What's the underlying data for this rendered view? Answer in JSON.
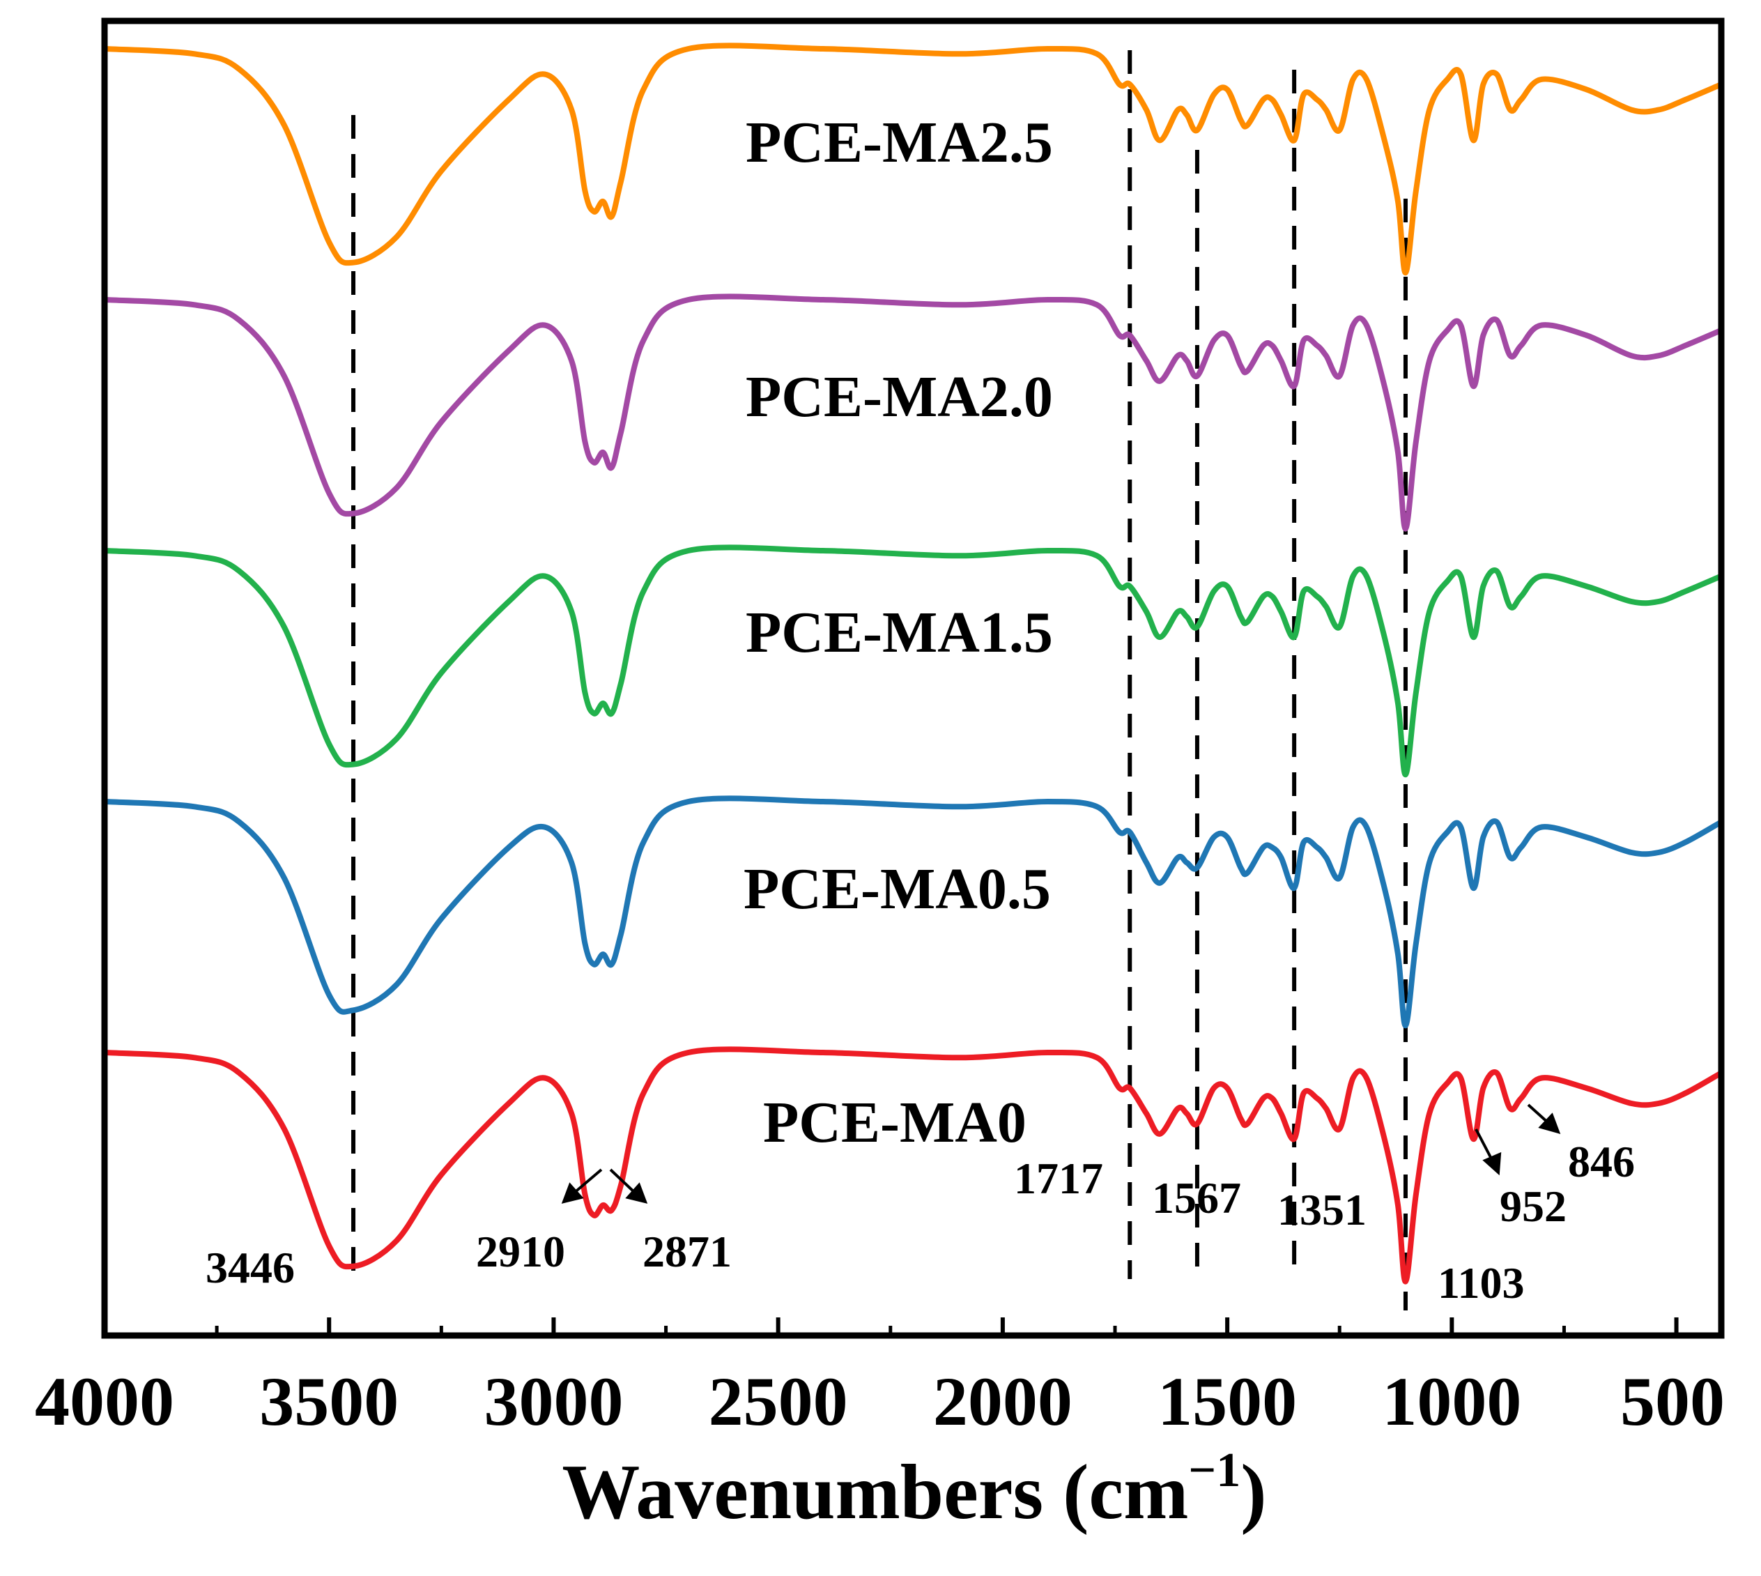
{
  "chart_data": {
    "type": "line",
    "title": "",
    "xlabel": "Wavenumbers (cm",
    "xlabel_sup": "−1",
    "xlabel_close": ")",
    "ylabel": "",
    "xlim": [
      4000,
      400
    ],
    "x_reversed": true,
    "x_ticks": [
      "4000",
      "3500",
      "3000",
      "2500",
      "2000",
      "1500",
      "1000",
      "500"
    ],
    "x_tick_values": [
      4000,
      3500,
      3000,
      2500,
      2000,
      1500,
      1000,
      500
    ],
    "grid": false,
    "legend": "inline labels",
    "series": [
      {
        "name": "PCE-MA2.5",
        "color": "#ff8c00",
        "offset": 4,
        "points": [
          [
            4000,
            1.0
          ],
          [
            3800,
            0.99
          ],
          [
            3700,
            0.96
          ],
          [
            3600,
            0.85
          ],
          [
            3500,
            0.62
          ],
          [
            3446,
            0.58
          ],
          [
            3350,
            0.63
          ],
          [
            3250,
            0.76
          ],
          [
            3100,
            0.9
          ],
          [
            3020,
            0.95
          ],
          [
            2960,
            0.88
          ],
          [
            2930,
            0.72
          ],
          [
            2910,
            0.68
          ],
          [
            2890,
            0.7
          ],
          [
            2871,
            0.67
          ],
          [
            2850,
            0.74
          ],
          [
            2800,
            0.92
          ],
          [
            2700,
            1.0
          ],
          [
            2400,
            1.0
          ],
          [
            2100,
            0.99
          ],
          [
            1900,
            1.0
          ],
          [
            1790,
            0.99
          ],
          [
            1740,
            0.93
          ],
          [
            1717,
            0.93
          ],
          [
            1680,
            0.88
          ],
          [
            1650,
            0.82
          ],
          [
            1610,
            0.88
          ],
          [
            1590,
            0.87
          ],
          [
            1567,
            0.84
          ],
          [
            1530,
            0.91
          ],
          [
            1500,
            0.92
          ],
          [
            1470,
            0.86
          ],
          [
            1455,
            0.85
          ],
          [
            1420,
            0.9
          ],
          [
            1400,
            0.9
          ],
          [
            1380,
            0.87
          ],
          [
            1351,
            0.82
          ],
          [
            1330,
            0.91
          ],
          [
            1300,
            0.9
          ],
          [
            1280,
            0.88
          ],
          [
            1250,
            0.84
          ],
          [
            1220,
            0.94
          ],
          [
            1190,
            0.94
          ],
          [
            1150,
            0.82
          ],
          [
            1120,
            0.7
          ],
          [
            1103,
            0.56
          ],
          [
            1080,
            0.72
          ],
          [
            1050,
            0.88
          ],
          [
            1010,
            0.94
          ],
          [
            980,
            0.95
          ],
          [
            952,
            0.82
          ],
          [
            930,
            0.93
          ],
          [
            900,
            0.95
          ],
          [
            870,
            0.88
          ],
          [
            846,
            0.9
          ],
          [
            800,
            0.94
          ],
          [
            700,
            0.92
          ],
          [
            600,
            0.88
          ],
          [
            540,
            0.88
          ],
          [
            480,
            0.9
          ],
          [
            400,
            0.93
          ]
        ]
      },
      {
        "name": "PCE-MA2.0",
        "color": "#a349a4",
        "offset": 3,
        "points": [
          [
            4000,
            1.0
          ],
          [
            3800,
            0.99
          ],
          [
            3700,
            0.96
          ],
          [
            3600,
            0.85
          ],
          [
            3500,
            0.62
          ],
          [
            3446,
            0.58
          ],
          [
            3350,
            0.63
          ],
          [
            3250,
            0.76
          ],
          [
            3100,
            0.9
          ],
          [
            3020,
            0.95
          ],
          [
            2960,
            0.88
          ],
          [
            2930,
            0.72
          ],
          [
            2910,
            0.68
          ],
          [
            2890,
            0.7
          ],
          [
            2871,
            0.67
          ],
          [
            2850,
            0.74
          ],
          [
            2800,
            0.92
          ],
          [
            2700,
            1.0
          ],
          [
            2400,
            1.0
          ],
          [
            2100,
            0.99
          ],
          [
            1900,
            1.0
          ],
          [
            1790,
            0.99
          ],
          [
            1740,
            0.93
          ],
          [
            1717,
            0.93
          ],
          [
            1680,
            0.88
          ],
          [
            1650,
            0.84
          ],
          [
            1610,
            0.89
          ],
          [
            1590,
            0.88
          ],
          [
            1567,
            0.85
          ],
          [
            1530,
            0.92
          ],
          [
            1500,
            0.93
          ],
          [
            1470,
            0.87
          ],
          [
            1455,
            0.86
          ],
          [
            1420,
            0.91
          ],
          [
            1400,
            0.91
          ],
          [
            1380,
            0.88
          ],
          [
            1351,
            0.83
          ],
          [
            1330,
            0.92
          ],
          [
            1300,
            0.91
          ],
          [
            1280,
            0.89
          ],
          [
            1250,
            0.85
          ],
          [
            1220,
            0.95
          ],
          [
            1190,
            0.95
          ],
          [
            1150,
            0.83
          ],
          [
            1120,
            0.7
          ],
          [
            1103,
            0.55
          ],
          [
            1080,
            0.72
          ],
          [
            1050,
            0.88
          ],
          [
            1010,
            0.94
          ],
          [
            980,
            0.95
          ],
          [
            952,
            0.83
          ],
          [
            930,
            0.93
          ],
          [
            900,
            0.96
          ],
          [
            870,
            0.89
          ],
          [
            846,
            0.91
          ],
          [
            800,
            0.95
          ],
          [
            700,
            0.93
          ],
          [
            600,
            0.89
          ],
          [
            540,
            0.89
          ],
          [
            480,
            0.91
          ],
          [
            400,
            0.94
          ]
        ]
      },
      {
        "name": "PCE-MA1.5",
        "color": "#22b14c",
        "offset": 2,
        "points": [
          [
            4000,
            1.0
          ],
          [
            3800,
            0.99
          ],
          [
            3700,
            0.96
          ],
          [
            3600,
            0.85
          ],
          [
            3500,
            0.62
          ],
          [
            3446,
            0.58
          ],
          [
            3350,
            0.63
          ],
          [
            3250,
            0.76
          ],
          [
            3100,
            0.9
          ],
          [
            3020,
            0.95
          ],
          [
            2960,
            0.88
          ],
          [
            2930,
            0.72
          ],
          [
            2910,
            0.68
          ],
          [
            2890,
            0.7
          ],
          [
            2871,
            0.68
          ],
          [
            2850,
            0.74
          ],
          [
            2800,
            0.92
          ],
          [
            2700,
            1.0
          ],
          [
            2400,
            1.0
          ],
          [
            2100,
            0.99
          ],
          [
            1900,
            1.0
          ],
          [
            1790,
            0.99
          ],
          [
            1740,
            0.93
          ],
          [
            1717,
            0.93
          ],
          [
            1680,
            0.88
          ],
          [
            1650,
            0.83
          ],
          [
            1610,
            0.88
          ],
          [
            1590,
            0.87
          ],
          [
            1567,
            0.85
          ],
          [
            1530,
            0.92
          ],
          [
            1500,
            0.93
          ],
          [
            1470,
            0.87
          ],
          [
            1455,
            0.86
          ],
          [
            1420,
            0.91
          ],
          [
            1400,
            0.91
          ],
          [
            1380,
            0.88
          ],
          [
            1351,
            0.83
          ],
          [
            1330,
            0.92
          ],
          [
            1300,
            0.91
          ],
          [
            1280,
            0.89
          ],
          [
            1250,
            0.85
          ],
          [
            1220,
            0.95
          ],
          [
            1190,
            0.95
          ],
          [
            1150,
            0.83
          ],
          [
            1120,
            0.7
          ],
          [
            1103,
            0.56
          ],
          [
            1080,
            0.72
          ],
          [
            1050,
            0.88
          ],
          [
            1010,
            0.94
          ],
          [
            980,
            0.95
          ],
          [
            952,
            0.83
          ],
          [
            930,
            0.93
          ],
          [
            900,
            0.96
          ],
          [
            870,
            0.89
          ],
          [
            846,
            0.91
          ],
          [
            800,
            0.95
          ],
          [
            700,
            0.93
          ],
          [
            600,
            0.9
          ],
          [
            540,
            0.9
          ],
          [
            480,
            0.92
          ],
          [
            400,
            0.95
          ]
        ]
      },
      {
        "name": "PCE-MA0.5",
        "color": "#1f77b4",
        "offset": 1,
        "points": [
          [
            4000,
            1.0
          ],
          [
            3800,
            0.99
          ],
          [
            3700,
            0.96
          ],
          [
            3600,
            0.85
          ],
          [
            3500,
            0.62
          ],
          [
            3446,
            0.59
          ],
          [
            3350,
            0.64
          ],
          [
            3250,
            0.77
          ],
          [
            3100,
            0.91
          ],
          [
            3020,
            0.95
          ],
          [
            2960,
            0.88
          ],
          [
            2930,
            0.72
          ],
          [
            2910,
            0.68
          ],
          [
            2890,
            0.7
          ],
          [
            2871,
            0.68
          ],
          [
            2850,
            0.74
          ],
          [
            2800,
            0.92
          ],
          [
            2700,
            1.0
          ],
          [
            2400,
            1.0
          ],
          [
            2100,
            0.99
          ],
          [
            1900,
            1.0
          ],
          [
            1790,
            0.99
          ],
          [
            1740,
            0.94
          ],
          [
            1717,
            0.94
          ],
          [
            1680,
            0.88
          ],
          [
            1650,
            0.84
          ],
          [
            1610,
            0.89
          ],
          [
            1590,
            0.88
          ],
          [
            1567,
            0.87
          ],
          [
            1530,
            0.93
          ],
          [
            1500,
            0.93
          ],
          [
            1470,
            0.87
          ],
          [
            1455,
            0.86
          ],
          [
            1420,
            0.91
          ],
          [
            1400,
            0.91
          ],
          [
            1380,
            0.89
          ],
          [
            1351,
            0.83
          ],
          [
            1330,
            0.92
          ],
          [
            1300,
            0.91
          ],
          [
            1280,
            0.89
          ],
          [
            1250,
            0.85
          ],
          [
            1220,
            0.95
          ],
          [
            1190,
            0.95
          ],
          [
            1150,
            0.83
          ],
          [
            1120,
            0.7
          ],
          [
            1103,
            0.56
          ],
          [
            1080,
            0.72
          ],
          [
            1050,
            0.88
          ],
          [
            1010,
            0.94
          ],
          [
            980,
            0.95
          ],
          [
            952,
            0.83
          ],
          [
            930,
            0.93
          ],
          [
            900,
            0.96
          ],
          [
            870,
            0.89
          ],
          [
            846,
            0.91
          ],
          [
            800,
            0.95
          ],
          [
            700,
            0.93
          ],
          [
            600,
            0.9
          ],
          [
            540,
            0.9
          ],
          [
            480,
            0.92
          ],
          [
            400,
            0.96
          ]
        ]
      },
      {
        "name": "PCE-MA0",
        "color": "#ed1c24",
        "offset": 0,
        "points": [
          [
            4000,
            1.0
          ],
          [
            3800,
            0.99
          ],
          [
            3700,
            0.96
          ],
          [
            3600,
            0.85
          ],
          [
            3500,
            0.62
          ],
          [
            3446,
            0.58
          ],
          [
            3350,
            0.63
          ],
          [
            3250,
            0.76
          ],
          [
            3100,
            0.9
          ],
          [
            3020,
            0.95
          ],
          [
            2960,
            0.88
          ],
          [
            2930,
            0.72
          ],
          [
            2910,
            0.68
          ],
          [
            2890,
            0.7
          ],
          [
            2871,
            0.69
          ],
          [
            2850,
            0.74
          ],
          [
            2800,
            0.92
          ],
          [
            2700,
            1.0
          ],
          [
            2400,
            1.0
          ],
          [
            2100,
            0.99
          ],
          [
            1900,
            1.0
          ],
          [
            1790,
            0.99
          ],
          [
            1740,
            0.93
          ],
          [
            1717,
            0.93
          ],
          [
            1680,
            0.88
          ],
          [
            1650,
            0.84
          ],
          [
            1610,
            0.89
          ],
          [
            1590,
            0.88
          ],
          [
            1567,
            0.86
          ],
          [
            1530,
            0.93
          ],
          [
            1500,
            0.93
          ],
          [
            1470,
            0.87
          ],
          [
            1455,
            0.86
          ],
          [
            1420,
            0.91
          ],
          [
            1400,
            0.91
          ],
          [
            1380,
            0.88
          ],
          [
            1351,
            0.83
          ],
          [
            1330,
            0.92
          ],
          [
            1300,
            0.91
          ],
          [
            1280,
            0.89
          ],
          [
            1250,
            0.85
          ],
          [
            1220,
            0.95
          ],
          [
            1190,
            0.95
          ],
          [
            1150,
            0.83
          ],
          [
            1120,
            0.7
          ],
          [
            1103,
            0.55
          ],
          [
            1080,
            0.72
          ],
          [
            1050,
            0.88
          ],
          [
            1010,
            0.94
          ],
          [
            980,
            0.95
          ],
          [
            952,
            0.83
          ],
          [
            930,
            0.93
          ],
          [
            900,
            0.96
          ],
          [
            870,
            0.89
          ],
          [
            846,
            0.91
          ],
          [
            800,
            0.95
          ],
          [
            700,
            0.93
          ],
          [
            600,
            0.9
          ],
          [
            540,
            0.9
          ],
          [
            480,
            0.92
          ],
          [
            400,
            0.96
          ]
        ]
      }
    ],
    "reference_lines": [
      3446,
      1717,
      1567,
      1351,
      1103
    ],
    "peak_labels": [
      "3446",
      "2910",
      "2871",
      "1717",
      "1567",
      "1351",
      "1103",
      "952",
      "846"
    ]
  }
}
